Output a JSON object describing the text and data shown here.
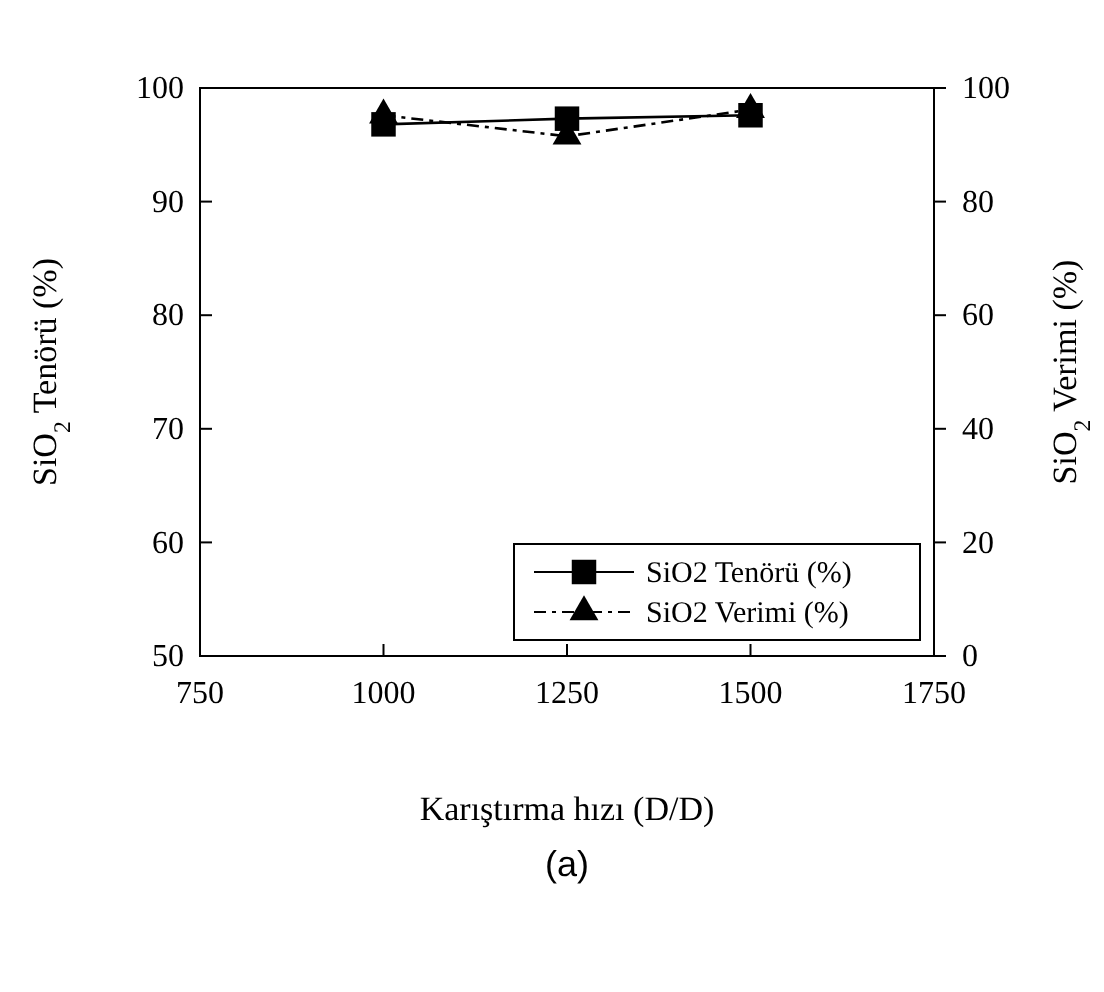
{
  "chart_data": {
    "type": "line",
    "xlabel": "Karıştırma hızı (D/D)",
    "ylabel": "SiO$_{2}$ Tenörü (%)",
    "y2label": "SiO$_{2}$ Verimi (%)",
    "annotations": [
      "(a)"
    ],
    "x": [
      1000,
      1250,
      1500
    ],
    "series": [
      {
        "name": "SiO2 Tenörü (%)",
        "color": "#000000",
        "values": [
          96.8,
          97.3,
          97.6
        ],
        "marker": "square",
        "line_style": "solid"
      },
      {
        "name": "SiO2 Verimi (%)",
        "color": "#000000",
        "values": [
          95.2,
          91.5,
          96.2
        ],
        "marker": "triangle",
        "line_style": "dashed",
        "axis": "y2"
      }
    ],
    "xlim": [
      750,
      1750
    ],
    "xticks": [
      750,
      1000,
      1250,
      1500,
      1750
    ],
    "ylim": [
      50,
      100
    ],
    "yticks": [
      50,
      60,
      70,
      80,
      90,
      100
    ],
    "y2lim": [
      0,
      100
    ],
    "y2ticks": [
      0,
      20,
      40,
      60,
      80,
      100
    ],
    "legend": "bottom right"
  }
}
